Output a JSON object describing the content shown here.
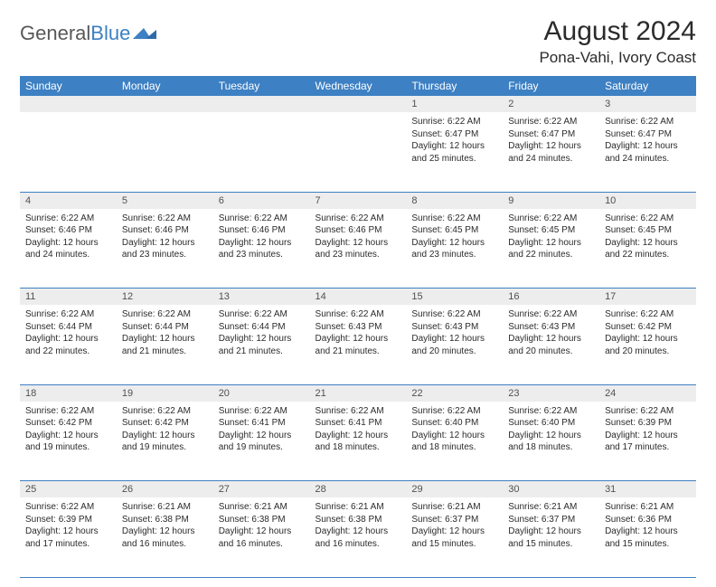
{
  "logo": {
    "part1": "General",
    "part2": "Blue"
  },
  "title": "August 2024",
  "location": "Pona-Vahi, Ivory Coast",
  "style": {
    "header_bg": "#3d80c3",
    "header_fg": "#ffffff",
    "daynum_bg": "#ededed",
    "body_bg": "#ffffff",
    "text_color": "#2b2b2b",
    "border_color": "#3d80c3",
    "title_fontsize": 30,
    "location_fontsize": 17,
    "th_fontsize": 12,
    "cell_fontsize": 10
  },
  "weekdays": [
    "Sunday",
    "Monday",
    "Tuesday",
    "Wednesday",
    "Thursday",
    "Friday",
    "Saturday"
  ],
  "weeks": [
    [
      null,
      null,
      null,
      null,
      {
        "n": "1",
        "sr": "Sunrise: 6:22 AM",
        "ss": "Sunset: 6:47 PM",
        "dl": "Daylight: 12 hours and 25 minutes."
      },
      {
        "n": "2",
        "sr": "Sunrise: 6:22 AM",
        "ss": "Sunset: 6:47 PM",
        "dl": "Daylight: 12 hours and 24 minutes."
      },
      {
        "n": "3",
        "sr": "Sunrise: 6:22 AM",
        "ss": "Sunset: 6:47 PM",
        "dl": "Daylight: 12 hours and 24 minutes."
      }
    ],
    [
      {
        "n": "4",
        "sr": "Sunrise: 6:22 AM",
        "ss": "Sunset: 6:46 PM",
        "dl": "Daylight: 12 hours and 24 minutes."
      },
      {
        "n": "5",
        "sr": "Sunrise: 6:22 AM",
        "ss": "Sunset: 6:46 PM",
        "dl": "Daylight: 12 hours and 23 minutes."
      },
      {
        "n": "6",
        "sr": "Sunrise: 6:22 AM",
        "ss": "Sunset: 6:46 PM",
        "dl": "Daylight: 12 hours and 23 minutes."
      },
      {
        "n": "7",
        "sr": "Sunrise: 6:22 AM",
        "ss": "Sunset: 6:46 PM",
        "dl": "Daylight: 12 hours and 23 minutes."
      },
      {
        "n": "8",
        "sr": "Sunrise: 6:22 AM",
        "ss": "Sunset: 6:45 PM",
        "dl": "Daylight: 12 hours and 23 minutes."
      },
      {
        "n": "9",
        "sr": "Sunrise: 6:22 AM",
        "ss": "Sunset: 6:45 PM",
        "dl": "Daylight: 12 hours and 22 minutes."
      },
      {
        "n": "10",
        "sr": "Sunrise: 6:22 AM",
        "ss": "Sunset: 6:45 PM",
        "dl": "Daylight: 12 hours and 22 minutes."
      }
    ],
    [
      {
        "n": "11",
        "sr": "Sunrise: 6:22 AM",
        "ss": "Sunset: 6:44 PM",
        "dl": "Daylight: 12 hours and 22 minutes."
      },
      {
        "n": "12",
        "sr": "Sunrise: 6:22 AM",
        "ss": "Sunset: 6:44 PM",
        "dl": "Daylight: 12 hours and 21 minutes."
      },
      {
        "n": "13",
        "sr": "Sunrise: 6:22 AM",
        "ss": "Sunset: 6:44 PM",
        "dl": "Daylight: 12 hours and 21 minutes."
      },
      {
        "n": "14",
        "sr": "Sunrise: 6:22 AM",
        "ss": "Sunset: 6:43 PM",
        "dl": "Daylight: 12 hours and 21 minutes."
      },
      {
        "n": "15",
        "sr": "Sunrise: 6:22 AM",
        "ss": "Sunset: 6:43 PM",
        "dl": "Daylight: 12 hours and 20 minutes."
      },
      {
        "n": "16",
        "sr": "Sunrise: 6:22 AM",
        "ss": "Sunset: 6:43 PM",
        "dl": "Daylight: 12 hours and 20 minutes."
      },
      {
        "n": "17",
        "sr": "Sunrise: 6:22 AM",
        "ss": "Sunset: 6:42 PM",
        "dl": "Daylight: 12 hours and 20 minutes."
      }
    ],
    [
      {
        "n": "18",
        "sr": "Sunrise: 6:22 AM",
        "ss": "Sunset: 6:42 PM",
        "dl": "Daylight: 12 hours and 19 minutes."
      },
      {
        "n": "19",
        "sr": "Sunrise: 6:22 AM",
        "ss": "Sunset: 6:42 PM",
        "dl": "Daylight: 12 hours and 19 minutes."
      },
      {
        "n": "20",
        "sr": "Sunrise: 6:22 AM",
        "ss": "Sunset: 6:41 PM",
        "dl": "Daylight: 12 hours and 19 minutes."
      },
      {
        "n": "21",
        "sr": "Sunrise: 6:22 AM",
        "ss": "Sunset: 6:41 PM",
        "dl": "Daylight: 12 hours and 18 minutes."
      },
      {
        "n": "22",
        "sr": "Sunrise: 6:22 AM",
        "ss": "Sunset: 6:40 PM",
        "dl": "Daylight: 12 hours and 18 minutes."
      },
      {
        "n": "23",
        "sr": "Sunrise: 6:22 AM",
        "ss": "Sunset: 6:40 PM",
        "dl": "Daylight: 12 hours and 18 minutes."
      },
      {
        "n": "24",
        "sr": "Sunrise: 6:22 AM",
        "ss": "Sunset: 6:39 PM",
        "dl": "Daylight: 12 hours and 17 minutes."
      }
    ],
    [
      {
        "n": "25",
        "sr": "Sunrise: 6:22 AM",
        "ss": "Sunset: 6:39 PM",
        "dl": "Daylight: 12 hours and 17 minutes."
      },
      {
        "n": "26",
        "sr": "Sunrise: 6:21 AM",
        "ss": "Sunset: 6:38 PM",
        "dl": "Daylight: 12 hours and 16 minutes."
      },
      {
        "n": "27",
        "sr": "Sunrise: 6:21 AM",
        "ss": "Sunset: 6:38 PM",
        "dl": "Daylight: 12 hours and 16 minutes."
      },
      {
        "n": "28",
        "sr": "Sunrise: 6:21 AM",
        "ss": "Sunset: 6:38 PM",
        "dl": "Daylight: 12 hours and 16 minutes."
      },
      {
        "n": "29",
        "sr": "Sunrise: 6:21 AM",
        "ss": "Sunset: 6:37 PM",
        "dl": "Daylight: 12 hours and 15 minutes."
      },
      {
        "n": "30",
        "sr": "Sunrise: 6:21 AM",
        "ss": "Sunset: 6:37 PM",
        "dl": "Daylight: 12 hours and 15 minutes."
      },
      {
        "n": "31",
        "sr": "Sunrise: 6:21 AM",
        "ss": "Sunset: 6:36 PM",
        "dl": "Daylight: 12 hours and 15 minutes."
      }
    ]
  ]
}
